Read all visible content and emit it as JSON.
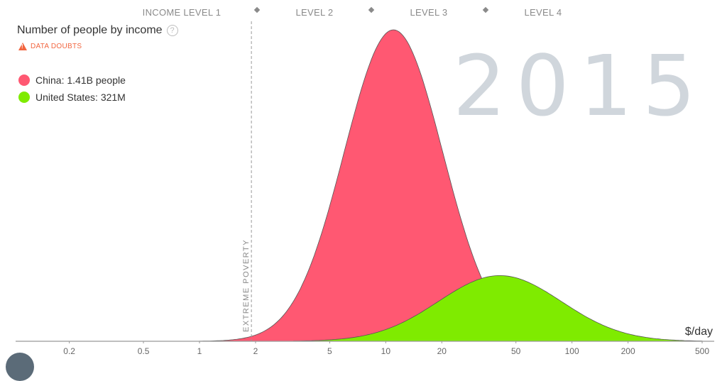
{
  "levels": [
    {
      "label": "INCOME LEVEL 1"
    },
    {
      "label": "LEVEL 2"
    },
    {
      "label": "LEVEL 3"
    },
    {
      "label": "LEVEL 4"
    }
  ],
  "title": "Number of people by income",
  "help_icon": "?",
  "data_doubts": "DATA DOUBTS",
  "year": "2015",
  "unit": "$/day",
  "extreme_poverty": "EXTREME POVERTY",
  "colors": {
    "china": "#ff5872",
    "usa": "#7feb00",
    "axis": "#999999"
  },
  "legend": [
    {
      "label": "China: 1.41B people",
      "color": "#ff5872"
    },
    {
      "label": "United States: 321M",
      "color": "#7feb00"
    }
  ],
  "chart_data": {
    "type": "area",
    "x_scale": "log",
    "xlim": [
      0.11,
      560
    ],
    "x_ticks": [
      {
        "value": 0.2,
        "label": "0.2"
      },
      {
        "value": 0.5,
        "label": "0.5"
      },
      {
        "value": 1,
        "label": "1"
      },
      {
        "value": 2,
        "label": "2"
      },
      {
        "value": 5,
        "label": "5"
      },
      {
        "value": 10,
        "label": "10"
      },
      {
        "value": 20,
        "label": "20"
      },
      {
        "value": 50,
        "label": "50"
      },
      {
        "value": 100,
        "label": "100"
      },
      {
        "value": 200,
        "label": "200"
      },
      {
        "value": 500,
        "label": "500"
      }
    ],
    "extreme_poverty_line": 1.9,
    "series": [
      {
        "name": "China: 1.41B people",
        "peak_x": 11,
        "peak_rel": 1.0,
        "spread_log10": 0.265,
        "x_range": [
          1,
          50
        ]
      },
      {
        "name": "United States: 321M",
        "peak_x": 41,
        "peak_rel": 0.211,
        "spread_log10": 0.33,
        "x_range": [
          3.2,
          500
        ]
      }
    ]
  }
}
